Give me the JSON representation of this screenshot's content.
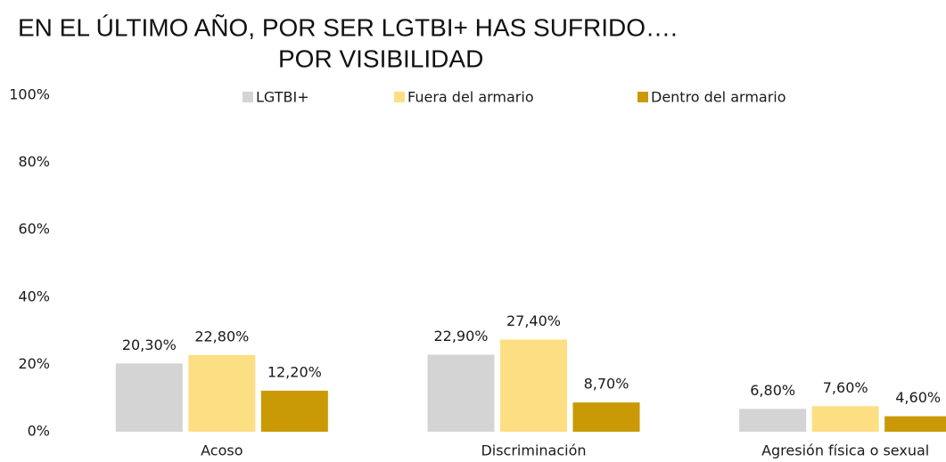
{
  "chart_data": {
    "type": "bar",
    "title": "EN EL ÚLTIMO AÑO, POR SER LGTBI+ HAS SUFRIDO….",
    "subtitle": "POR VISIBILIDAD",
    "categories": [
      "Acoso",
      "Discriminación",
      "Agresión física o sexual"
    ],
    "series": [
      {
        "name": "LGTBI+",
        "color": "#d4d4d4",
        "values": [
          20.3,
          22.9,
          6.8
        ],
        "value_labels": [
          "20,30%",
          "22,90%",
          "6,80%"
        ]
      },
      {
        "name": "Fuera del armario",
        "color": "#fddf83",
        "values": [
          22.8,
          27.4,
          7.6
        ],
        "value_labels": [
          "22,80%",
          "27,40%",
          "7,60%"
        ]
      },
      {
        "name": "Dentro del armario",
        "color": "#c99a06",
        "values": [
          12.2,
          8.7,
          4.6
        ],
        "value_labels": [
          "12,20%",
          "8,70%",
          "4,60%"
        ]
      }
    ],
    "ylim": [
      0,
      100
    ],
    "yticks": [
      {
        "value": 0,
        "label": "0%"
      },
      {
        "value": 20,
        "label": "20%"
      },
      {
        "value": 40,
        "label": "40%"
      },
      {
        "value": 60,
        "label": "60%"
      },
      {
        "value": 80,
        "label": "80%"
      },
      {
        "value": 100,
        "label": "100%"
      }
    ],
    "grid": false,
    "legend": "top"
  }
}
